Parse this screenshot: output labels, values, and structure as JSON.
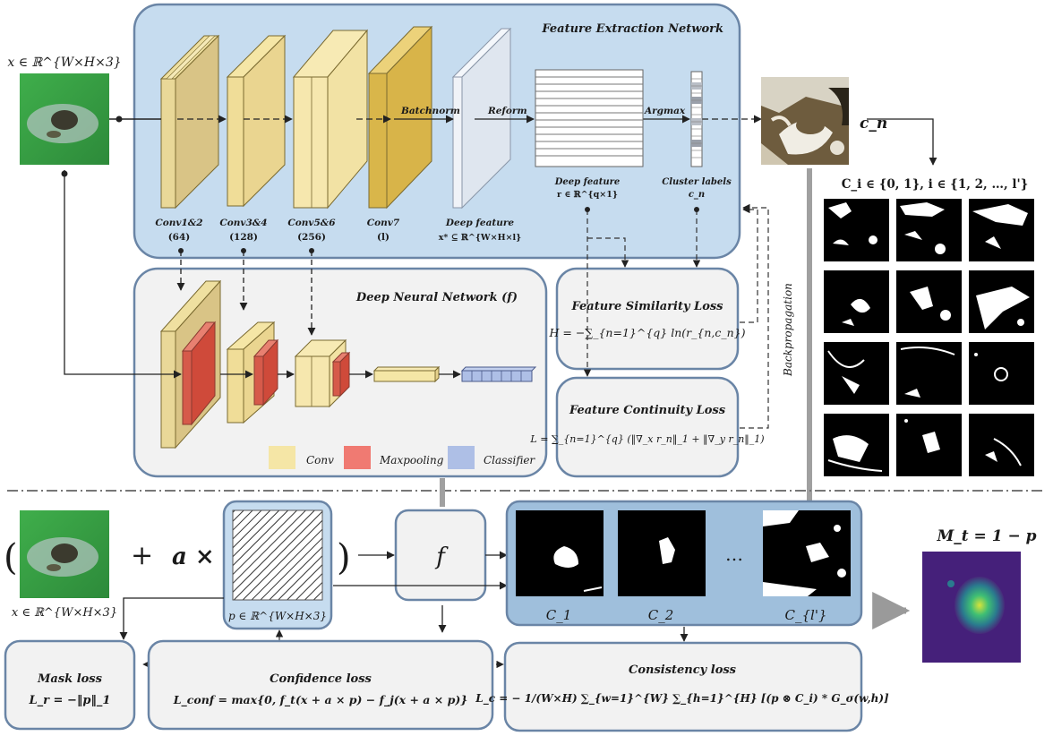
{
  "colors": {
    "panel_blue": "#c6dcef",
    "panel_gray": "#f2f2f2",
    "panel_stroke": "#6a85a6",
    "conv": "#f5e6a6",
    "maxpool": "#e05a4a",
    "classifier": "#9fb6de",
    "deep_feature": "#e8edf4"
  },
  "top": {
    "input_label": "x ∈ ℝ^{W×H×3}",
    "fen_title": "Feature Extraction Network",
    "layers": [
      {
        "name": "Conv1&2",
        "ch": "(64)"
      },
      {
        "name": "Conv3&4",
        "ch": "(128)"
      },
      {
        "name": "Conv5&6",
        "ch": "(256)"
      },
      {
        "name": "Conv7",
        "ch": "(l)"
      },
      {
        "name": "Deep feature",
        "ch": "x* ⊆ ℝ^{W×H×l}"
      }
    ],
    "arrow_batchnorm": "Batchnorm",
    "arrow_reform": "Reform",
    "arrow_argmax": "Argmax",
    "deep_feature_label": "Deep feature",
    "deep_feature_math": "r ∈ ℝ^{q×1}",
    "cluster_label": "Cluster labels",
    "cluster_math": "c_n",
    "cn_label": "c_n",
    "ci_label": "C_i ∈ {0, 1}, i ∈ {1, 2, …, l'}",
    "backprop": "Backpropagation"
  },
  "dnn": {
    "title": "Deep Neural Network (f)",
    "legend": [
      {
        "label": "Conv",
        "color": "#f5e6a6"
      },
      {
        "label": "Maxpooling",
        "color": "#f07a72"
      },
      {
        "label": "Classifier",
        "color": "#aebfe6"
      }
    ]
  },
  "losses": {
    "similarity_title": "Feature Similarity Loss",
    "similarity_formula": "H = −∑_{n=1}^{q} ln(r_{n,c_n})",
    "continuity_title": "Feature Continuity Loss",
    "continuity_formula": "L = ∑_{n=1}^{q} (‖∇_x r_n‖_1 + ‖∇_y r_n‖_1)"
  },
  "bottom": {
    "open_paren": "(",
    "plus": "+",
    "a_times": "a ×",
    "close_paren": ")",
    "input_label": "x ∈ ℝ^{W×H×3}",
    "p_label": "p ∈ ℝ^{W×H×3}",
    "f_label": "f",
    "c1": "C_1",
    "c2": "C_2",
    "dots": "…",
    "cl": "C_{l'}",
    "mt_label": "M_t = 1 − p",
    "mask_title": "Mask loss",
    "mask_formula": "L_r = −‖p‖_1",
    "confidence_title": "Confidence loss",
    "confidence_formula": "L_conf = max{0, f_t(x + a × p) − f_j(x + a × p)}",
    "consistency_title": "Consistency loss",
    "consistency_formula": "L_c = − 1/(W×H) ∑_{w=1}^{W} ∑_{h=1}^{H} [(p ⊗ C_i) * G_σ(w,h)]"
  }
}
